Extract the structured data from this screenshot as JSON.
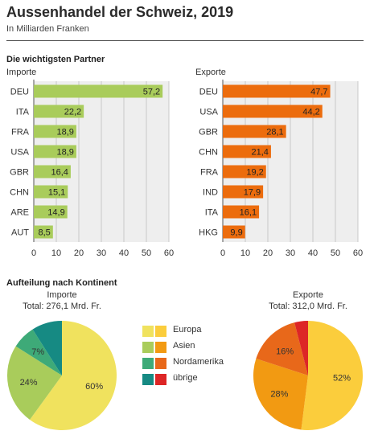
{
  "header": {
    "title": "Aussenhandel der Schweiz, 2019",
    "subtitle": "In Milliarden Franken"
  },
  "sections": {
    "partner": "Die wichtigsten Partner",
    "continent": "Aufteilung nach Kontinent"
  },
  "colors": {
    "import_bar": "#a9cc5b",
    "export_bar": "#ec6c0d",
    "plot_bg": "#eeeeee",
    "europa_import": "#f0e25e",
    "europa_export": "#fbcd3c",
    "asien_import": "#a9cc5b",
    "asien_export": "#f29a12",
    "nordamerika_import": "#3eaa78",
    "nordamerika_export": "#e8681a",
    "uebrige_import": "#168a83",
    "uebrige_export": "#dd2626"
  },
  "legend": [
    {
      "label": "Europa",
      "c1": "#f0e25e",
      "c2": "#fbcd3c"
    },
    {
      "label": "Asien",
      "c1": "#a9cc5b",
      "c2": "#f29a12"
    },
    {
      "label": "Nordamerika",
      "c1": "#3eaa78",
      "c2": "#e8681a"
    },
    {
      "label": "übrige",
      "c1": "#168a83",
      "c2": "#dd2626"
    }
  ],
  "chart_data": [
    {
      "type": "bar",
      "orientation": "horizontal",
      "title": "Importe",
      "categories": [
        "DEU",
        "ITA",
        "FRA",
        "USA",
        "GBR",
        "CHN",
        "ARE",
        "AUT"
      ],
      "values": [
        57.2,
        22.2,
        18.9,
        18.9,
        16.4,
        15.1,
        14.9,
        8.5
      ],
      "value_labels": [
        "57,2",
        "22,2",
        "18,9",
        "18,9",
        "16,4",
        "15,1",
        "14,9",
        "8,5"
      ],
      "xlim": [
        0,
        60
      ],
      "xticks": [
        0,
        10,
        20,
        30,
        40,
        50,
        60
      ],
      "grid": true
    },
    {
      "type": "bar",
      "orientation": "horizontal",
      "title": "Exporte",
      "categories": [
        "DEU",
        "USA",
        "GBR",
        "CHN",
        "FRA",
        "IND",
        "ITA",
        "HKG"
      ],
      "values": [
        47.7,
        44.2,
        28.1,
        21.4,
        19.2,
        17.9,
        16.1,
        9.9
      ],
      "value_labels": [
        "47,7",
        "44,2",
        "28,1",
        "21,4",
        "19,2",
        "17,9",
        "16,1",
        "9,9"
      ],
      "xlim": [
        0,
        60
      ],
      "xticks": [
        0,
        10,
        20,
        30,
        40,
        50,
        60
      ],
      "grid": true
    },
    {
      "type": "pie",
      "title": "Importe",
      "subtitle": "Total: 276,1 Mrd. Fr.",
      "labels": [
        "Europa",
        "Asien",
        "Nordamerika",
        "übrige"
      ],
      "values": [
        60,
        24,
        7,
        9
      ],
      "value_labels": [
        "60%",
        "24%",
        "7%",
        ""
      ]
    },
    {
      "type": "pie",
      "title": "Exporte",
      "subtitle": "Total: 312,0 Mrd. Fr.",
      "labels": [
        "Europa",
        "Asien",
        "Nordamerika",
        "übrige"
      ],
      "values": [
        52,
        28,
        16,
        4
      ],
      "value_labels": [
        "52%",
        "28%",
        "16%",
        ""
      ]
    }
  ]
}
